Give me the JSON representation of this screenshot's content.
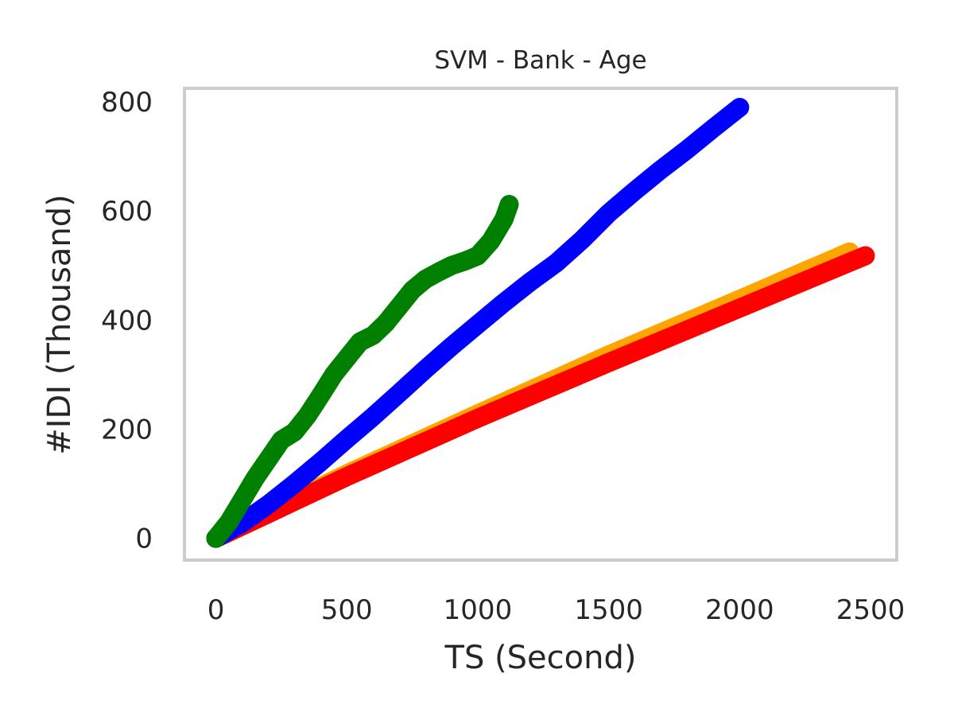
{
  "chart_data": {
    "type": "line",
    "title": "SVM - Bank - Age",
    "xlabel": "TS (Second)",
    "ylabel": "#IDI (Thousand)",
    "xlim": [
      -120,
      2600
    ],
    "ylim": [
      -40,
      825
    ],
    "xticks": [
      0,
      500,
      1000,
      1500,
      2000,
      2500
    ],
    "yticks": [
      0,
      200,
      400,
      600,
      800
    ],
    "grid": false,
    "series": [
      {
        "color": "#ffa500",
        "x": [
          0,
          200,
          500,
          1000,
          1500,
          2000,
          2420
        ],
        "y": [
          0,
          48,
          118,
          228,
          336,
          438,
          525
        ]
      },
      {
        "color": "#ff0000",
        "x": [
          0,
          200,
          500,
          1000,
          1500,
          2000,
          2480
        ],
        "y": [
          0,
          45,
          113,
          220,
          322,
          422,
          518
        ]
      },
      {
        "color": "#0000ff",
        "x": [
          0,
          100,
          200,
          300,
          400,
          500,
          600,
          700,
          800,
          900,
          1000,
          1100,
          1200,
          1300,
          1400,
          1500,
          1600,
          1700,
          1800,
          1900,
          2000
        ],
        "y": [
          0,
          28,
          62,
          100,
          140,
          182,
          223,
          266,
          310,
          352,
          392,
          432,
          470,
          505,
          548,
          596,
          637,
          676,
          713,
          752,
          790
        ]
      },
      {
        "color": "#008000",
        "x": [
          0,
          50,
          100,
          150,
          200,
          250,
          300,
          350,
          400,
          450,
          500,
          550,
          600,
          650,
          700,
          750,
          800,
          850,
          900,
          950,
          1000,
          1050,
          1100,
          1120
        ],
        "y": [
          0,
          30,
          70,
          110,
          145,
          180,
          195,
          225,
          262,
          300,
          330,
          360,
          372,
          395,
          425,
          455,
          475,
          488,
          500,
          508,
          518,
          545,
          585,
          612
        ]
      }
    ]
  }
}
